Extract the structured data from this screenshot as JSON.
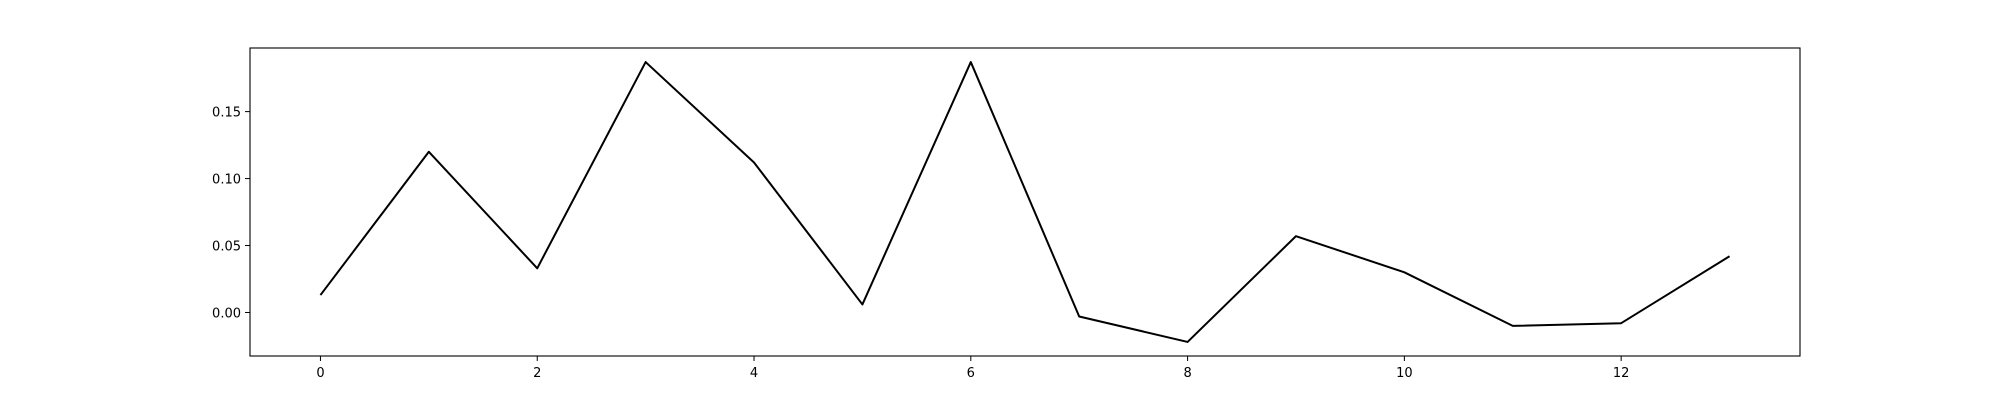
{
  "chart_data": {
    "type": "line",
    "title": "",
    "xlabel": "",
    "ylabel": "",
    "x": [
      0,
      1,
      2,
      3,
      4,
      5,
      6,
      7,
      8,
      9,
      10,
      11,
      12,
      13
    ],
    "series": [
      {
        "values": [
          0.013,
          0.12,
          0.033,
          0.187,
          0.112,
          0.006,
          0.187,
          -0.003,
          -0.022,
          0.057,
          0.03,
          -0.01,
          -0.008,
          0.042
        ],
        "color": "#000000"
      }
    ],
    "xlim": [
      -0.65,
      13.65
    ],
    "ylim": [
      -0.0325,
      0.1975
    ],
    "xticks": [
      0,
      2,
      4,
      6,
      8,
      10,
      12
    ],
    "xtick_labels": [
      "0",
      "2",
      "4",
      "6",
      "8",
      "10",
      "12"
    ],
    "yticks": [
      0.0,
      0.05,
      0.1,
      0.15
    ],
    "ytick_labels": [
      "0.00",
      "0.05",
      "0.10",
      "0.15"
    ],
    "grid": false,
    "legend": "none"
  }
}
